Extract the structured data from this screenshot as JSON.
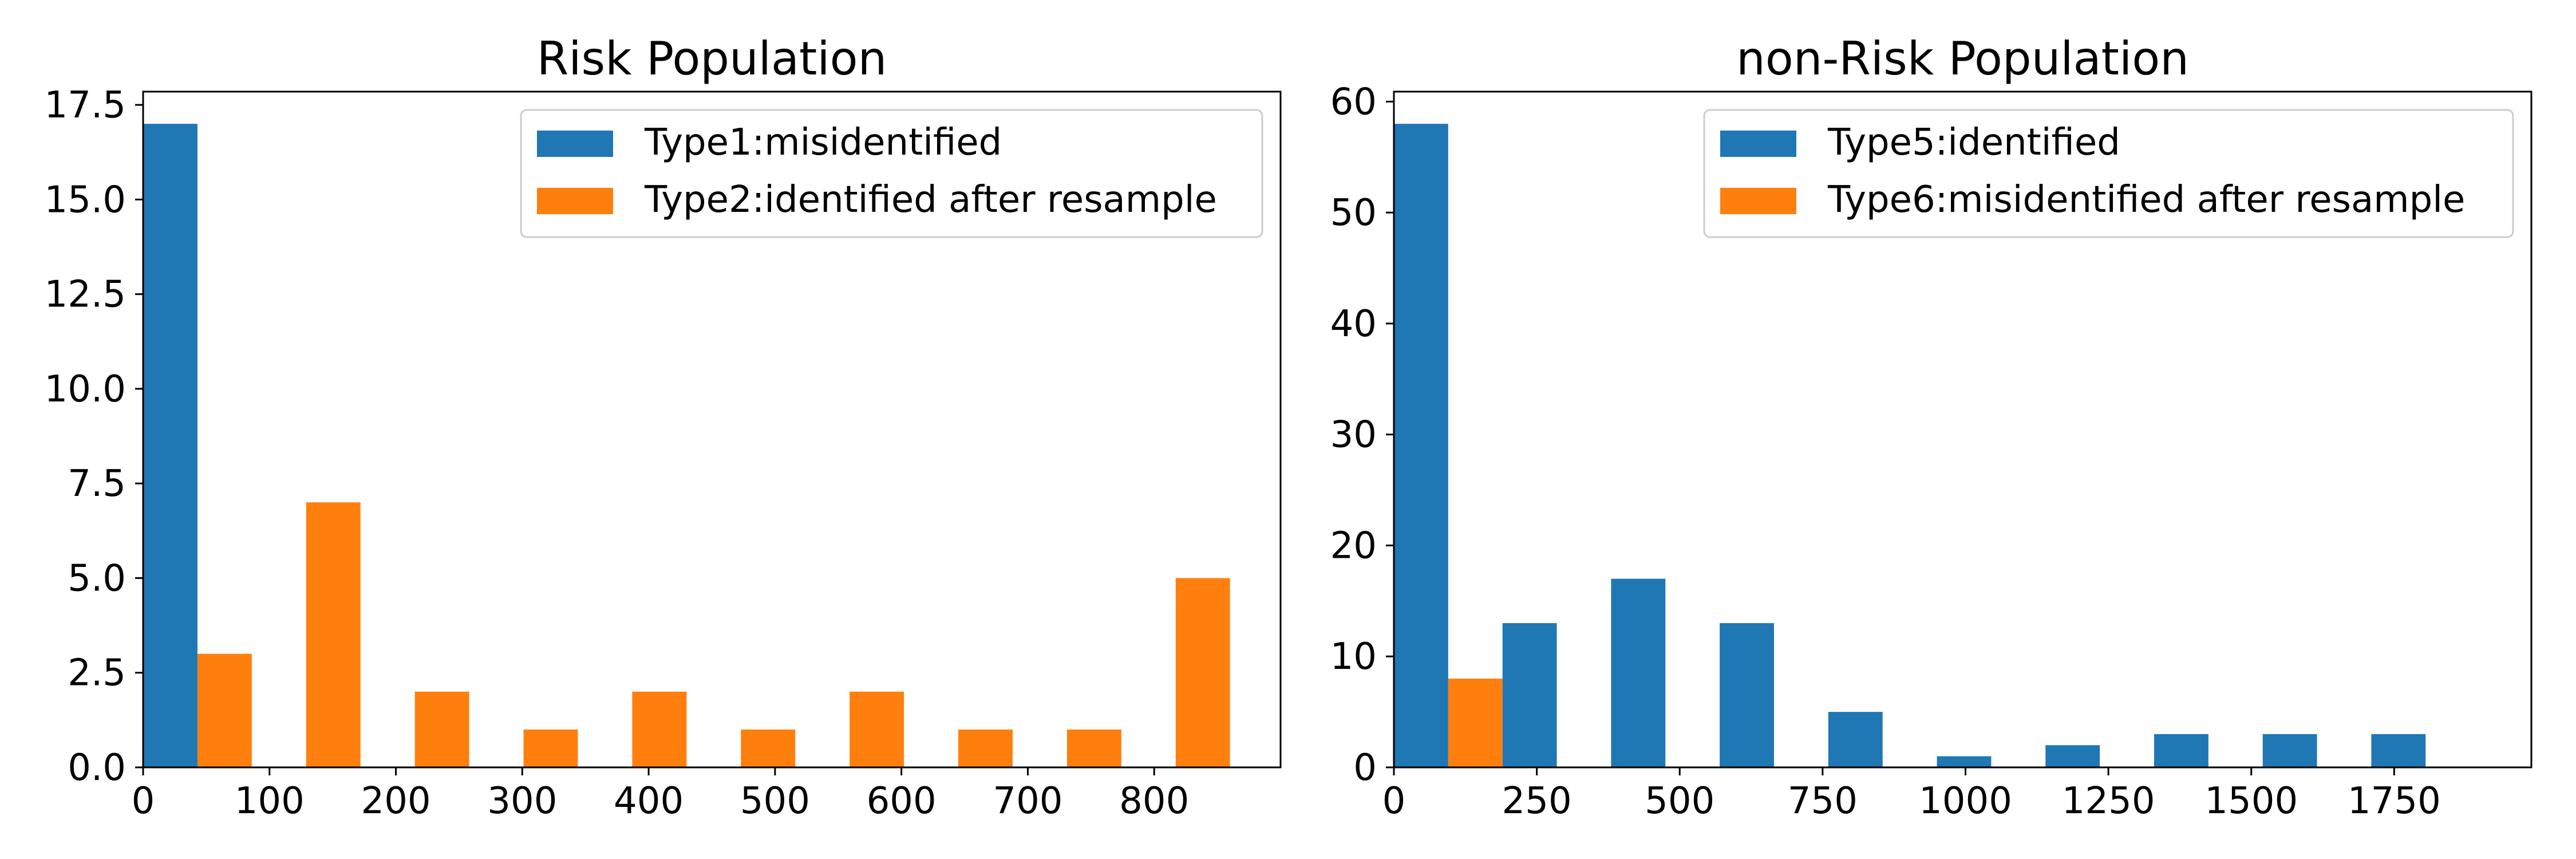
{
  "chart_data": [
    {
      "type": "bar",
      "title": "Risk Population",
      "xlabel": "",
      "ylabel": "",
      "xlim": [
        0,
        900
      ],
      "ylim": [
        0,
        17.85
      ],
      "xticks": [
        0,
        100,
        200,
        300,
        400,
        500,
        600,
        700,
        800
      ],
      "yticks": [
        0.0,
        2.5,
        5.0,
        7.5,
        10.0,
        12.5,
        15.0,
        17.5
      ],
      "xtick_labels": [
        "0",
        "100",
        "200",
        "300",
        "400",
        "500",
        "600",
        "700",
        "800"
      ],
      "ytick_labels": [
        "0.0",
        "2.5",
        "5.0",
        "7.5",
        "10.0",
        "12.5",
        "15.0",
        "17.5"
      ],
      "grid": false,
      "legend_position": "top-right",
      "series": [
        {
          "name": "Type1:misidentified",
          "color": "#1f77b4",
          "bars": [
            {
              "x0": 0,
              "x1": 43,
              "value": 17
            }
          ]
        },
        {
          "name": "Type2:identified after resample",
          "color": "#ff7f0e",
          "bars": [
            {
              "x0": 43,
              "x1": 86,
              "value": 3
            },
            {
              "x0": 129,
              "x1": 172,
              "value": 7
            },
            {
              "x0": 215,
              "x1": 258,
              "value": 2
            },
            {
              "x0": 301,
              "x1": 344,
              "value": 1
            },
            {
              "x0": 387,
              "x1": 430,
              "value": 2
            },
            {
              "x0": 473,
              "x1": 516,
              "value": 1
            },
            {
              "x0": 559,
              "x1": 602,
              "value": 2
            },
            {
              "x0": 645,
              "x1": 688,
              "value": 1
            },
            {
              "x0": 731,
              "x1": 774,
              "value": 1
            },
            {
              "x0": 817,
              "x1": 860,
              "value": 5
            }
          ]
        }
      ]
    },
    {
      "type": "bar",
      "title": "non-Risk Population",
      "xlabel": "",
      "ylabel": "",
      "xlim": [
        0,
        1990
      ],
      "ylim": [
        0,
        60.9
      ],
      "xticks": [
        0,
        250,
        500,
        750,
        1000,
        1250,
        1500,
        1750
      ],
      "yticks": [
        0,
        10,
        20,
        30,
        40,
        50,
        60
      ],
      "xtick_labels": [
        "0",
        "250",
        "500",
        "750",
        "1000",
        "1250",
        "1500",
        "1750"
      ],
      "ytick_labels": [
        "0",
        "10",
        "20",
        "30",
        "40",
        "50",
        "60"
      ],
      "grid": false,
      "legend_position": "top-right",
      "series": [
        {
          "name": "Type5:identified",
          "color": "#1f77b4",
          "bars": [
            {
              "x0": 0,
              "x1": 95,
              "value": 58
            },
            {
              "x0": 190,
              "x1": 285,
              "value": 13
            },
            {
              "x0": 380,
              "x1": 475,
              "value": 17
            },
            {
              "x0": 570,
              "x1": 665,
              "value": 13
            },
            {
              "x0": 760,
              "x1": 855,
              "value": 5
            },
            {
              "x0": 950,
              "x1": 1045,
              "value": 1
            },
            {
              "x0": 1140,
              "x1": 1235,
              "value": 2
            },
            {
              "x0": 1330,
              "x1": 1425,
              "value": 3
            },
            {
              "x0": 1520,
              "x1": 1615,
              "value": 3
            },
            {
              "x0": 1710,
              "x1": 1805,
              "value": 3
            }
          ]
        },
        {
          "name": "Type6:misidentified after resample",
          "color": "#ff7f0e",
          "bars": [
            {
              "x0": 95,
              "x1": 190,
              "value": 8
            }
          ]
        }
      ]
    }
  ]
}
